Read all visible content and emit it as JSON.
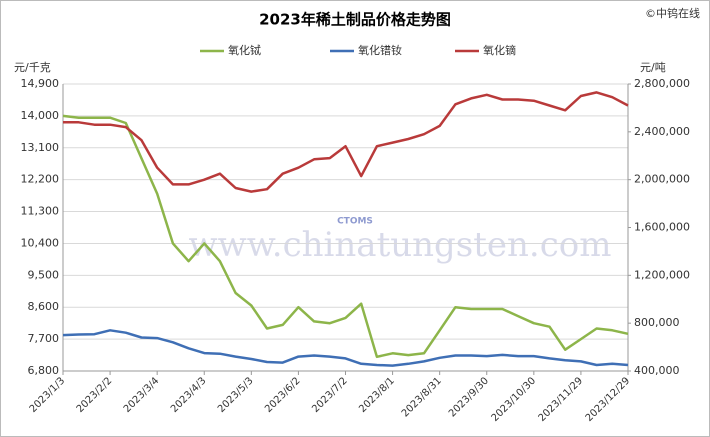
{
  "chart_data": {
    "type": "line",
    "title": "2023年稀土制品价格走势图",
    "credit": "©中钨在线",
    "watermark": "www.chinatungsten.com",
    "logo_text": "CTOMS",
    "ylabel": "元/千克",
    "y2label": "元/吨",
    "grid": true,
    "legend": "top",
    "x": [
      "2023/1/3",
      "2023/1/13",
      "2023/1/23",
      "2023/2/2",
      "2023/2/12",
      "2023/2/22",
      "2023/3/4",
      "2023/3/14",
      "2023/3/24",
      "2023/4/3",
      "2023/4/13",
      "2023/4/23",
      "2023/5/3",
      "2023/5/13",
      "2023/5/23",
      "2023/6/2",
      "2023/6/12",
      "2023/6/22",
      "2023/7/2",
      "2023/7/12",
      "2023/7/22",
      "2023/8/1",
      "2023/8/11",
      "2023/8/21",
      "2023/8/31",
      "2023/9/10",
      "2023/9/20",
      "2023/9/30",
      "2023/10/10",
      "2023/10/20",
      "2023/10/30",
      "2023/11/9",
      "2023/11/19",
      "2023/11/29",
      "2023/12/9",
      "2023/12/19",
      "2023/12/29"
    ],
    "xlim": [
      "2023/1/3",
      "2023/12/29"
    ],
    "xticks": [
      "2023/1/3",
      "2023/2/2",
      "2023/3/4",
      "2023/4/3",
      "2023/5/3",
      "2023/6/2",
      "2023/7/2",
      "2023/8/1",
      "2023/8/31",
      "2023/9/30",
      "2023/10/30",
      "2023/11/29",
      "2023/12/29"
    ],
    "ylim": [
      6800,
      14900
    ],
    "yticks": [
      {
        "value": 6800,
        "label": "6,800"
      },
      {
        "value": 7700,
        "label": "7,700"
      },
      {
        "value": 8600,
        "label": "8,600"
      },
      {
        "value": 9500,
        "label": "9,500"
      },
      {
        "value": 10400,
        "label": "10,400"
      },
      {
        "value": 11300,
        "label": "11,300"
      },
      {
        "value": 12200,
        "label": "12,200"
      },
      {
        "value": 13100,
        "label": "13,100"
      },
      {
        "value": 14000,
        "label": "14,000"
      },
      {
        "value": 14900,
        "label": "14,900"
      }
    ],
    "y2lim": [
      400000,
      2800000
    ],
    "y2ticks": [
      {
        "value": 400000,
        "label": "400,000"
      },
      {
        "value": 800000,
        "label": "800,000"
      },
      {
        "value": 1200000,
        "label": "1,200,000"
      },
      {
        "value": 1600000,
        "label": "1,600,000"
      },
      {
        "value": 2000000,
        "label": "2,000,000"
      },
      {
        "value": 2400000,
        "label": "2,400,000"
      },
      {
        "value": 2800000,
        "label": "2,800,000"
      }
    ],
    "series": [
      {
        "name": "氧化铽",
        "color": "#8db54a",
        "axis": "y",
        "values": [
          14000,
          13950,
          13950,
          13950,
          13800,
          12800,
          11800,
          10400,
          9900,
          10400,
          9900,
          9000,
          8650,
          8000,
          8100,
          8600,
          8200,
          8150,
          8300,
          8700,
          7200,
          7300,
          7250,
          7300,
          7950,
          8600,
          8550,
          8550,
          8550,
          8350,
          8150,
          8050,
          7400,
          7700,
          8000,
          7950,
          7850
        ]
      },
      {
        "name": "氧化镨钕",
        "color": "#3f6fb5",
        "axis": "y2",
        "values": [
          700000,
          705000,
          708000,
          740000,
          720000,
          680000,
          675000,
          640000,
          590000,
          550000,
          545000,
          520000,
          500000,
          475000,
          470000,
          520000,
          530000,
          520000,
          505000,
          460000,
          450000,
          445000,
          460000,
          480000,
          510000,
          530000,
          530000,
          525000,
          535000,
          525000,
          525000,
          505000,
          490000,
          480000,
          450000,
          460000,
          450000
        ]
      },
      {
        "name": "氧化镝",
        "color": "#b93a3a",
        "axis": "y2",
        "values": [
          2480000,
          2480000,
          2460000,
          2460000,
          2440000,
          2330000,
          2100000,
          1960000,
          1960000,
          2000000,
          2050000,
          1930000,
          1900000,
          1920000,
          2050000,
          2100000,
          2170000,
          2180000,
          2280000,
          2030000,
          2280000,
          2310000,
          2340000,
          2380000,
          2450000,
          2630000,
          2680000,
          2710000,
          2670000,
          2670000,
          2660000,
          2620000,
          2580000,
          2700000,
          2730000,
          2690000,
          2620000
        ]
      }
    ]
  }
}
